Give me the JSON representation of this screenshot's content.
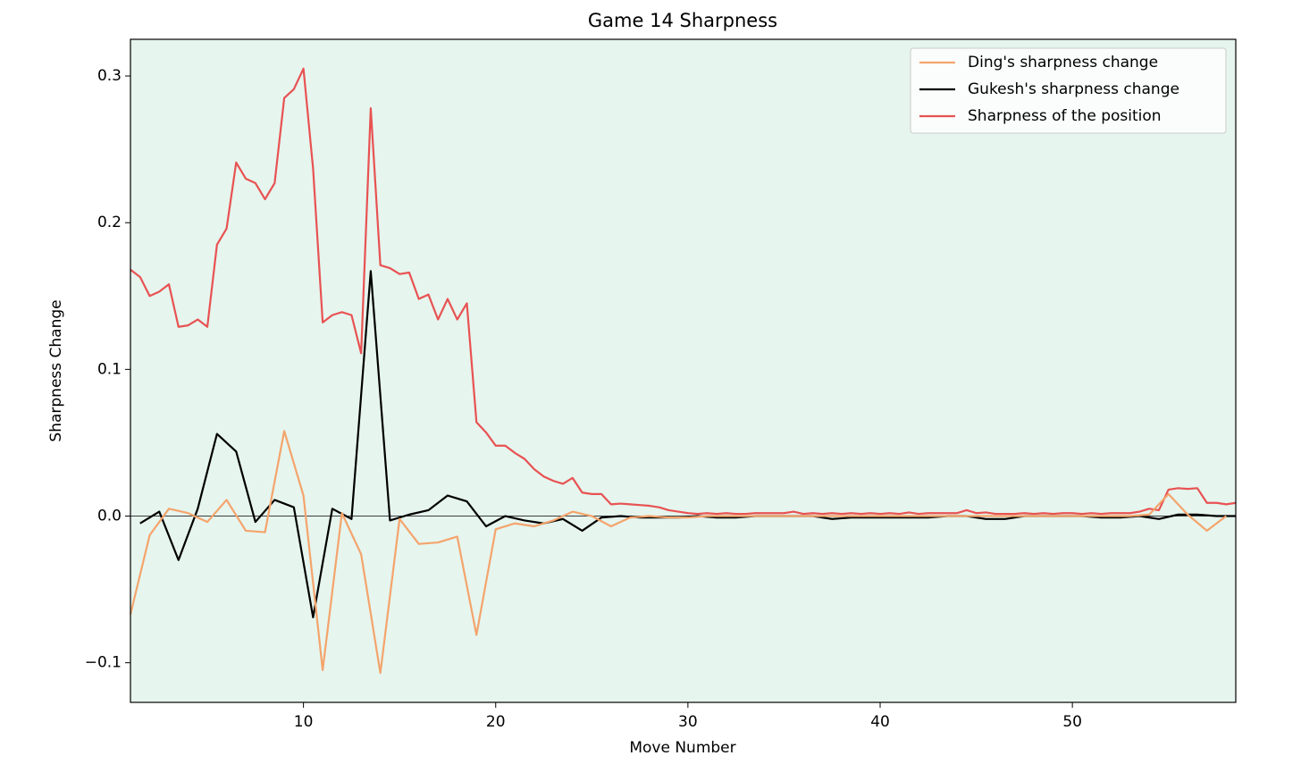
{
  "chart_data": {
    "type": "line",
    "title": "Game 14 Sharpness",
    "x_label": "Move Number",
    "y_label": "Sharpness Change",
    "xlim": [
      1,
      58.5
    ],
    "ylim": [
      -0.127,
      0.325
    ],
    "xticks": [
      10,
      20,
      30,
      40,
      50
    ],
    "yticks": [
      {
        "value": -0.1,
        "label": "−0.1"
      },
      {
        "value": 0,
        "label": "0.0"
      },
      0.1,
      0.2,
      0.3
    ],
    "hline": 0,
    "background": "#e6f5ee",
    "legend": "upper right",
    "series": [
      {
        "name": "Ding's sharpness change",
        "color": "#f4a46c",
        "x": [
          1,
          2,
          3,
          4,
          5,
          6,
          7,
          8,
          9,
          10,
          11,
          12,
          13,
          14,
          15,
          16,
          17,
          18,
          19,
          20,
          21,
          22,
          23,
          24,
          25,
          26,
          27,
          28,
          29,
          30,
          31,
          32,
          33,
          34,
          35,
          36,
          37,
          38,
          39,
          40,
          41,
          42,
          43,
          44,
          45,
          46,
          47,
          48,
          49,
          50,
          51,
          52,
          53,
          54,
          55,
          56,
          57,
          58
        ],
        "values": [
          -0.067,
          -0.013,
          0.005,
          0.002,
          -0.004,
          0.011,
          -0.01,
          -0.011,
          0.058,
          0.014,
          -0.105,
          0.002,
          -0.026,
          -0.107,
          -0.002,
          -0.019,
          -0.018,
          -0.014,
          -0.081,
          -0.009,
          -0.005,
          -0.007,
          -0.003,
          0.003,
          0,
          -0.007,
          -0.001,
          0,
          -0.001,
          -0.001,
          0,
          0,
          0,
          0,
          0,
          0,
          0,
          0,
          0,
          0,
          0,
          0,
          0,
          0,
          0,
          0,
          0,
          0,
          0,
          0,
          0,
          0,
          0,
          0.001,
          0.015,
          0.001,
          -0.01,
          0
        ]
      },
      {
        "name": "Gukesh's sharpness change",
        "color": "#000000",
        "x": [
          1.5,
          2.5,
          3.5,
          4.5,
          5.5,
          6.5,
          7.5,
          8.5,
          9.5,
          10.5,
          11.5,
          12.5,
          13.5,
          14.5,
          15.5,
          16.5,
          17.5,
          18.5,
          19.5,
          20.5,
          21.5,
          22.5,
          23.5,
          24.5,
          25.5,
          26.5,
          27.5,
          28.5,
          29.5,
          30.5,
          31.5,
          32.5,
          33.5,
          34.5,
          35.5,
          36.5,
          37.5,
          38.5,
          39.5,
          40.5,
          41.5,
          42.5,
          43.5,
          44.5,
          45.5,
          46.5,
          47.5,
          48.5,
          49.5,
          50.5,
          51.5,
          52.5,
          53.5,
          54.5,
          55.5,
          56.5,
          57.5,
          58.5
        ],
        "values": [
          -0.005,
          0.003,
          -0.03,
          0.005,
          0.056,
          0.044,
          -0.004,
          0.011,
          0.006,
          -0.069,
          0.005,
          -0.002,
          0.167,
          -0.003,
          0.001,
          0.004,
          0.014,
          0.01,
          -0.007,
          0,
          -0.003,
          -0.005,
          -0.002,
          -0.01,
          -0.001,
          0,
          -0.001,
          -0.001,
          -0.001,
          0,
          -0.001,
          -0.001,
          0,
          0,
          0,
          0,
          -0.002,
          -0.001,
          -0.001,
          -0.001,
          -0.001,
          -0.001,
          0,
          0,
          -0.002,
          -0.002,
          0,
          0,
          0,
          0,
          -0.001,
          -0.001,
          0,
          -0.002,
          0.001,
          0.001,
          0,
          0
        ]
      },
      {
        "name": "Sharpness of the position",
        "color": "#e85252",
        "x": [
          1,
          1.5,
          2,
          2.5,
          3,
          3.5,
          4,
          4.5,
          5,
          5.5,
          6,
          6.5,
          7,
          7.5,
          8,
          8.5,
          9,
          9.5,
          10,
          10.5,
          11,
          11.5,
          12,
          12.5,
          13,
          13.5,
          14,
          14.5,
          15,
          15.5,
          16,
          16.5,
          17,
          17.5,
          18,
          18.5,
          19,
          19.5,
          20,
          20.5,
          21,
          21.5,
          22,
          22.5,
          23,
          23.5,
          24,
          24.5,
          25,
          25.5,
          26,
          26.5,
          27,
          27.5,
          28,
          28.5,
          29,
          29.5,
          30,
          30.5,
          31,
          31.5,
          32,
          32.5,
          33,
          33.5,
          34,
          34.5,
          35,
          35.5,
          36,
          36.5,
          37,
          37.5,
          38,
          38.5,
          39,
          39.5,
          40,
          40.5,
          41,
          41.5,
          42,
          42.5,
          43,
          43.5,
          44,
          44.5,
          45,
          45.5,
          46,
          46.5,
          47,
          47.5,
          48,
          48.5,
          49,
          49.5,
          50,
          50.5,
          51,
          51.5,
          52,
          52.5,
          53,
          53.5,
          54,
          54.5,
          55,
          55.5,
          56,
          56.5,
          57,
          57.5,
          58,
          58.5
        ],
        "values": [
          0.168,
          0.163,
          0.15,
          0.153,
          0.158,
          0.129,
          0.13,
          0.134,
          0.129,
          0.185,
          0.196,
          0.241,
          0.23,
          0.227,
          0.216,
          0.227,
          0.285,
          0.291,
          0.305,
          0.237,
          0.132,
          0.137,
          0.139,
          0.137,
          0.111,
          0.278,
          0.171,
          0.169,
          0.165,
          0.166,
          0.148,
          0.151,
          0.134,
          0.148,
          0.134,
          0.145,
          0.064,
          0.057,
          0.048,
          0.048,
          0.043,
          0.039,
          0.032,
          0.027,
          0.024,
          0.022,
          0.026,
          0.016,
          0.015,
          0.015,
          0.008,
          0.0085,
          0.008,
          0.0075,
          0.007,
          0.006,
          0.004,
          0.003,
          0.002,
          0.0015,
          0.002,
          0.0015,
          0.002,
          0.0015,
          0.0015,
          0.002,
          0.002,
          0.002,
          0.002,
          0.003,
          0.0015,
          0.002,
          0.0015,
          0.002,
          0.0015,
          0.002,
          0.0015,
          0.002,
          0.0015,
          0.002,
          0.0015,
          0.0025,
          0.0015,
          0.002,
          0.002,
          0.002,
          0.002,
          0.004,
          0.002,
          0.0025,
          0.0015,
          0.0015,
          0.0015,
          0.002,
          0.0015,
          0.002,
          0.0015,
          0.002,
          0.002,
          0.0015,
          0.002,
          0.0015,
          0.002,
          0.002,
          0.002,
          0.003,
          0.005,
          0.004,
          0.018,
          0.019,
          0.0185,
          0.019,
          0.009,
          0.009,
          0.008,
          0.009
        ]
      }
    ]
  }
}
